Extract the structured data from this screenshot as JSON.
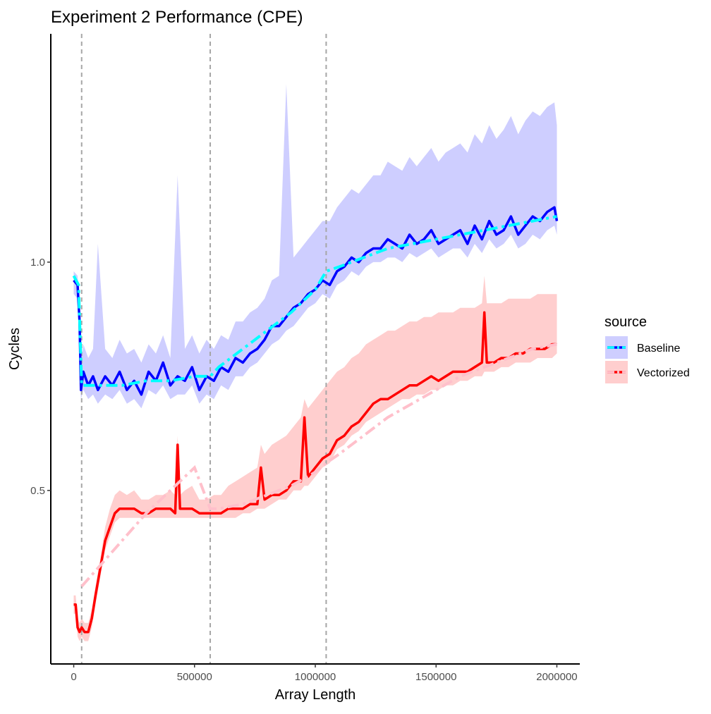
{
  "chart_data": {
    "type": "line",
    "title": "Experiment 2 Performance (CPE)",
    "xlabel": "Array Length",
    "ylabel": "Cycles",
    "xlim": [
      -95000,
      2095000
    ],
    "ylim": [
      0.12,
      1.5
    ],
    "x_ticks": [
      0,
      500000,
      1000000,
      1500000,
      2000000
    ],
    "x_tick_labels": [
      "0",
      "500000",
      "1000000",
      "1500000",
      "2000000"
    ],
    "y_ticks": [
      0.5,
      1.0
    ],
    "y_tick_labels": [
      "0.5",
      "1.0"
    ],
    "grid": false,
    "vlines": [
      32768,
      565000,
      1045000
    ],
    "legend": {
      "title": "source",
      "position": "right",
      "entries": [
        "Baseline",
        "Vectorized"
      ]
    },
    "series": [
      {
        "name": "Baseline",
        "line_color": "#0000ff",
        "trend_color": "#00ffff",
        "ribbon_color": "#b3b3ff",
        "x": [
          0,
          16000,
          24000,
          30000,
          40000,
          60000,
          80000,
          100000,
          130000,
          160000,
          190000,
          220000,
          250000,
          280000,
          310000,
          340000,
          370000,
          400000,
          430000,
          460000,
          490000,
          520000,
          550000,
          580000,
          610000,
          640000,
          670000,
          700000,
          730000,
          760000,
          790000,
          820000,
          850000,
          880000,
          910000,
          940000,
          970000,
          1000000,
          1030000,
          1060000,
          1090000,
          1120000,
          1150000,
          1180000,
          1210000,
          1240000,
          1270000,
          1300000,
          1330000,
          1360000,
          1390000,
          1420000,
          1450000,
          1480000,
          1510000,
          1540000,
          1570000,
          1600000,
          1630000,
          1660000,
          1690000,
          1720000,
          1750000,
          1780000,
          1810000,
          1840000,
          1870000,
          1900000,
          1930000,
          1960000,
          1990000,
          2000000
        ],
        "y": [
          0.96,
          0.95,
          0.87,
          0.72,
          0.76,
          0.73,
          0.75,
          0.72,
          0.75,
          0.73,
          0.76,
          0.72,
          0.74,
          0.71,
          0.76,
          0.74,
          0.78,
          0.73,
          0.75,
          0.74,
          0.77,
          0.72,
          0.75,
          0.74,
          0.77,
          0.76,
          0.79,
          0.78,
          0.8,
          0.81,
          0.83,
          0.86,
          0.86,
          0.88,
          0.9,
          0.91,
          0.93,
          0.94,
          0.96,
          0.95,
          0.98,
          0.99,
          1.01,
          1.0,
          1.02,
          1.03,
          1.03,
          1.05,
          1.04,
          1.03,
          1.06,
          1.04,
          1.05,
          1.07,
          1.04,
          1.05,
          1.06,
          1.07,
          1.04,
          1.08,
          1.05,
          1.09,
          1.06,
          1.07,
          1.1,
          1.06,
          1.08,
          1.1,
          1.09,
          1.11,
          1.12,
          1.09
        ],
        "low": [
          0.93,
          0.92,
          0.85,
          0.7,
          0.72,
          0.7,
          0.71,
          0.69,
          0.71,
          0.7,
          0.72,
          0.69,
          0.7,
          0.68,
          0.72,
          0.71,
          0.73,
          0.7,
          0.71,
          0.71,
          0.73,
          0.69,
          0.71,
          0.7,
          0.73,
          0.72,
          0.75,
          0.75,
          0.77,
          0.78,
          0.8,
          0.82,
          0.83,
          0.85,
          0.86,
          0.88,
          0.9,
          0.91,
          0.93,
          0.92,
          0.95,
          0.96,
          0.98,
          0.97,
          0.99,
          1.0,
          1.0,
          1.01,
          1.01,
          1.0,
          1.02,
          1.01,
          1.02,
          1.03,
          1.01,
          1.02,
          1.03,
          1.03,
          1.01,
          1.04,
          1.02,
          1.05,
          1.03,
          1.04,
          1.06,
          1.03,
          1.04,
          1.06,
          1.05,
          1.07,
          1.08,
          1.06
        ],
        "high": [
          0.98,
          0.97,
          0.9,
          0.78,
          0.82,
          0.79,
          0.81,
          1.04,
          0.81,
          0.79,
          0.83,
          0.8,
          0.81,
          0.78,
          0.82,
          0.8,
          0.84,
          0.79,
          1.19,
          0.81,
          0.84,
          0.8,
          0.83,
          0.81,
          0.84,
          0.83,
          0.87,
          0.87,
          0.89,
          0.9,
          0.92,
          0.96,
          0.97,
          1.39,
          1.01,
          1.03,
          1.05,
          1.07,
          1.09,
          1.09,
          1.12,
          1.14,
          1.16,
          1.15,
          1.17,
          1.19,
          1.19,
          1.22,
          1.21,
          1.2,
          1.23,
          1.21,
          1.23,
          1.25,
          1.22,
          1.24,
          1.25,
          1.26,
          1.24,
          1.28,
          1.26,
          1.3,
          1.27,
          1.29,
          1.32,
          1.28,
          1.31,
          1.33,
          1.32,
          1.34,
          1.35,
          1.3
        ],
        "trend_x": [
          0,
          20000,
          32768,
          100000,
          200000,
          300000,
          400000,
          500000,
          565000,
          600000,
          700000,
          800000,
          900000,
          1000000,
          1045000,
          1100000,
          1200000,
          1300000,
          1400000,
          1500000,
          1600000,
          1700000,
          1800000,
          1900000,
          2000000
        ],
        "trend_y": [
          0.97,
          0.95,
          0.73,
          0.73,
          0.73,
          0.74,
          0.74,
          0.75,
          0.75,
          0.77,
          0.81,
          0.85,
          0.89,
          0.94,
          0.98,
          0.99,
          1.01,
          1.03,
          1.04,
          1.05,
          1.06,
          1.07,
          1.08,
          1.09,
          1.1
        ]
      },
      {
        "name": "Vectorized",
        "line_color": "#ff0000",
        "trend_color": "#ffc0cb",
        "ribbon_color": "#ffb3b3",
        "x": [
          0,
          8000,
          16000,
          24000,
          32768,
          45000,
          60000,
          75000,
          90000,
          110000,
          130000,
          150000,
          170000,
          190000,
          220000,
          250000,
          280000,
          310000,
          340000,
          370000,
          400000,
          420000,
          430000,
          440000,
          460000,
          490000,
          520000,
          550000,
          580000,
          610000,
          640000,
          670000,
          700000,
          730000,
          760000,
          775000,
          790000,
          820000,
          850000,
          880000,
          910000,
          940000,
          955000,
          970000,
          1000000,
          1030000,
          1060000,
          1090000,
          1120000,
          1150000,
          1180000,
          1210000,
          1240000,
          1270000,
          1300000,
          1330000,
          1360000,
          1390000,
          1420000,
          1450000,
          1480000,
          1510000,
          1540000,
          1570000,
          1600000,
          1630000,
          1660000,
          1690000,
          1700000,
          1710000,
          1740000,
          1770000,
          1800000,
          1830000,
          1860000,
          1890000,
          1920000,
          1950000,
          1980000,
          2000000
        ],
        "y": [
          0.25,
          0.25,
          0.2,
          0.19,
          0.2,
          0.19,
          0.19,
          0.22,
          0.27,
          0.33,
          0.39,
          0.42,
          0.45,
          0.46,
          0.46,
          0.46,
          0.45,
          0.45,
          0.46,
          0.46,
          0.46,
          0.45,
          0.6,
          0.46,
          0.46,
          0.46,
          0.45,
          0.45,
          0.45,
          0.45,
          0.46,
          0.46,
          0.46,
          0.47,
          0.47,
          0.55,
          0.48,
          0.49,
          0.49,
          0.5,
          0.52,
          0.52,
          0.66,
          0.53,
          0.55,
          0.57,
          0.58,
          0.61,
          0.62,
          0.64,
          0.65,
          0.67,
          0.69,
          0.7,
          0.7,
          0.71,
          0.72,
          0.73,
          0.73,
          0.74,
          0.75,
          0.74,
          0.75,
          0.76,
          0.76,
          0.76,
          0.77,
          0.78,
          0.89,
          0.78,
          0.78,
          0.79,
          0.79,
          0.8,
          0.8,
          0.81,
          0.81,
          0.81,
          0.82,
          0.82
        ],
        "low": [
          0.23,
          0.23,
          0.18,
          0.17,
          0.18,
          0.17,
          0.17,
          0.2,
          0.25,
          0.31,
          0.37,
          0.4,
          0.43,
          0.44,
          0.44,
          0.44,
          0.44,
          0.44,
          0.44,
          0.44,
          0.44,
          0.44,
          0.44,
          0.44,
          0.44,
          0.44,
          0.44,
          0.44,
          0.44,
          0.44,
          0.44,
          0.44,
          0.45,
          0.45,
          0.46,
          0.46,
          0.46,
          0.47,
          0.48,
          0.48,
          0.5,
          0.5,
          0.51,
          0.51,
          0.53,
          0.55,
          0.56,
          0.59,
          0.6,
          0.62,
          0.63,
          0.65,
          0.66,
          0.67,
          0.68,
          0.69,
          0.7,
          0.7,
          0.71,
          0.71,
          0.72,
          0.72,
          0.73,
          0.73,
          0.74,
          0.74,
          0.75,
          0.75,
          0.76,
          0.76,
          0.76,
          0.77,
          0.77,
          0.78,
          0.78,
          0.78,
          0.79,
          0.79,
          0.79,
          0.8
        ],
        "high": [
          0.27,
          0.27,
          0.22,
          0.21,
          0.22,
          0.21,
          0.21,
          0.24,
          0.29,
          0.35,
          0.42,
          0.46,
          0.49,
          0.5,
          0.49,
          0.5,
          0.48,
          0.48,
          0.49,
          0.49,
          0.5,
          0.49,
          0.62,
          0.49,
          0.5,
          0.51,
          0.48,
          0.48,
          0.49,
          0.49,
          0.51,
          0.52,
          0.53,
          0.54,
          0.55,
          0.6,
          0.58,
          0.6,
          0.61,
          0.62,
          0.64,
          0.66,
          0.7,
          0.68,
          0.7,
          0.72,
          0.74,
          0.76,
          0.77,
          0.79,
          0.8,
          0.82,
          0.83,
          0.84,
          0.85,
          0.85,
          0.86,
          0.87,
          0.87,
          0.88,
          0.88,
          0.89,
          0.89,
          0.89,
          0.9,
          0.9,
          0.9,
          0.91,
          0.97,
          0.91,
          0.91,
          0.91,
          0.92,
          0.92,
          0.92,
          0.92,
          0.93,
          0.93,
          0.93,
          0.93
        ],
        "trend_x": [
          32768,
          100000,
          200000,
          300000,
          400000,
          500000,
          565000,
          600000,
          700000,
          800000,
          900000,
          1000000,
          1045000,
          1100000,
          1200000,
          1300000,
          1400000,
          1500000,
          1600000,
          1700000,
          1800000,
          1900000,
          2000000
        ],
        "trend_y": [
          0.29,
          0.33,
          0.39,
          0.45,
          0.5,
          0.55,
          0.46,
          0.46,
          0.47,
          0.49,
          0.51,
          0.54,
          0.56,
          0.58,
          0.62,
          0.66,
          0.69,
          0.72,
          0.75,
          0.77,
          0.79,
          0.81,
          0.82
        ]
      }
    ]
  }
}
